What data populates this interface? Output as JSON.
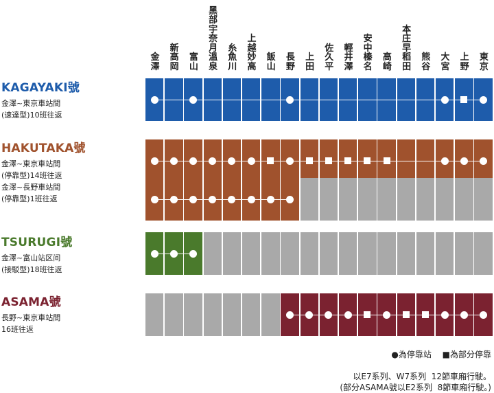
{
  "stations": [
    "金澤",
    "新高岡",
    "富山",
    "黑部宇奈月溫泉",
    "糸魚川",
    "上越妙高",
    "飯山",
    "長野",
    "上田",
    "佐久平",
    "輕井澤",
    "安中榛名",
    "高崎",
    "本庄早稻田",
    "熊谷",
    "大宮",
    "上野",
    "東京"
  ],
  "services": [
    {
      "name": "KAGAYAKI號",
      "color": "#1e5cab",
      "desc": "金澤~東京車站間\n(速達型)10班往返",
      "rows": [
        {
          "colored": [
            0,
            17
          ],
          "line": [
            0,
            17
          ],
          "stops": {
            "0": "dot",
            "2": "dot",
            "7": "dot",
            "15": "dot",
            "16": "square",
            "17": "dot"
          }
        }
      ]
    },
    {
      "name": "HAKUTAKA號",
      "color": "#a0522d",
      "desc": "金澤~東京車站間\n(停靠型)14班往返\n金澤~長野車站間\n(停靠型)1班往返",
      "rows": [
        {
          "colored": [
            0,
            17
          ],
          "line": [
            0,
            17
          ],
          "stops": {
            "0": "dot",
            "1": "dot",
            "2": "dot",
            "3": "dot",
            "4": "dot",
            "5": "dot",
            "6": "square",
            "7": "dot",
            "8": "square",
            "9": "square",
            "10": "square",
            "11": "square",
            "12": "square",
            "15": "dot",
            "16": "dot",
            "17": "dot"
          }
        },
        {
          "colored": [
            0,
            7
          ],
          "line": [
            0,
            7
          ],
          "stops": {
            "0": "dot",
            "1": "dot",
            "2": "dot",
            "3": "dot",
            "4": "dot",
            "5": "dot",
            "6": "dot",
            "7": "dot"
          }
        }
      ]
    },
    {
      "name": "TSURUGI號",
      "color": "#4a7a2c",
      "desc": "金澤~富山站区间\n(接駁型)18班往返",
      "rows": [
        {
          "colored": [
            0,
            2
          ],
          "line": [
            0,
            2
          ],
          "stops": {
            "0": "dot",
            "1": "dot",
            "2": "dot"
          }
        }
      ]
    },
    {
      "name": "ASAMA號",
      "color": "#7b2230",
      "desc": "長野~東京車站間\n16班往返",
      "rows": [
        {
          "colored": [
            7,
            17
          ],
          "line": [
            7,
            17
          ],
          "stops": {
            "7": "dot",
            "8": "dot",
            "9": "dot",
            "10": "dot",
            "11": "square",
            "12": "dot",
            "13": "square",
            "14": "square",
            "15": "dot",
            "16": "dot",
            "17": "dot"
          }
        }
      ]
    }
  ],
  "legend": {
    "dot_label": "●為停靠站",
    "square_label": "■為部分停靠"
  },
  "notes": [
    "以E7系列、W7系列  12節車廂行駛。",
    "(部分ASAMA號以E2系列  8節車廂行駛。)"
  ],
  "colors": {
    "inactive": "#a9a9a9"
  }
}
